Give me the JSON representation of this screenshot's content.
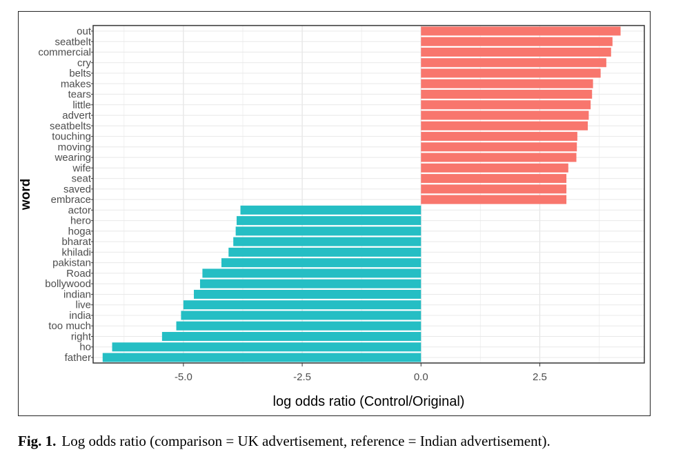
{
  "caption": {
    "label": "Fig. 1.",
    "text": "Log odds ratio (comparison = UK advertisement, reference = Indian advertisement)."
  },
  "chart_data": {
    "type": "bar",
    "orientation": "horizontal",
    "xlabel": "log odds ratio (Control/Original)",
    "ylabel": "word",
    "xlim": [
      -6.9,
      4.7
    ],
    "x_ticks": [
      -5.0,
      -2.5,
      0.0,
      2.5
    ],
    "x_tick_labels": [
      "-5.0",
      "-2.5",
      "0.0",
      "2.5"
    ],
    "grid": true,
    "legend": "none",
    "colors": {
      "positive": "#f8766d",
      "negative": "#25bec4"
    },
    "categories": [
      "out",
      "seatbelt",
      "commercial",
      "cry",
      "belts",
      "makes",
      "tears",
      "little",
      "advert",
      "seatbelts",
      "touching",
      "moving",
      "wearing",
      "wife",
      "seat",
      "saved",
      "embrace",
      "actor",
      "hero",
      "hoga",
      "bharat",
      "khiladi",
      "pakistan",
      "Road",
      "bollywood",
      "indian",
      "live",
      "india",
      "too much",
      "right",
      "ho",
      "father"
    ],
    "values": [
      4.2,
      4.03,
      4.0,
      3.9,
      3.78,
      3.62,
      3.6,
      3.57,
      3.53,
      3.51,
      3.29,
      3.28,
      3.27,
      3.1,
      3.06,
      3.06,
      3.06,
      -3.8,
      -3.88,
      -3.9,
      -3.95,
      -4.05,
      -4.2,
      -4.6,
      -4.65,
      -4.78,
      -5.0,
      -5.05,
      -5.15,
      -5.45,
      -6.5,
      -6.7
    ]
  }
}
